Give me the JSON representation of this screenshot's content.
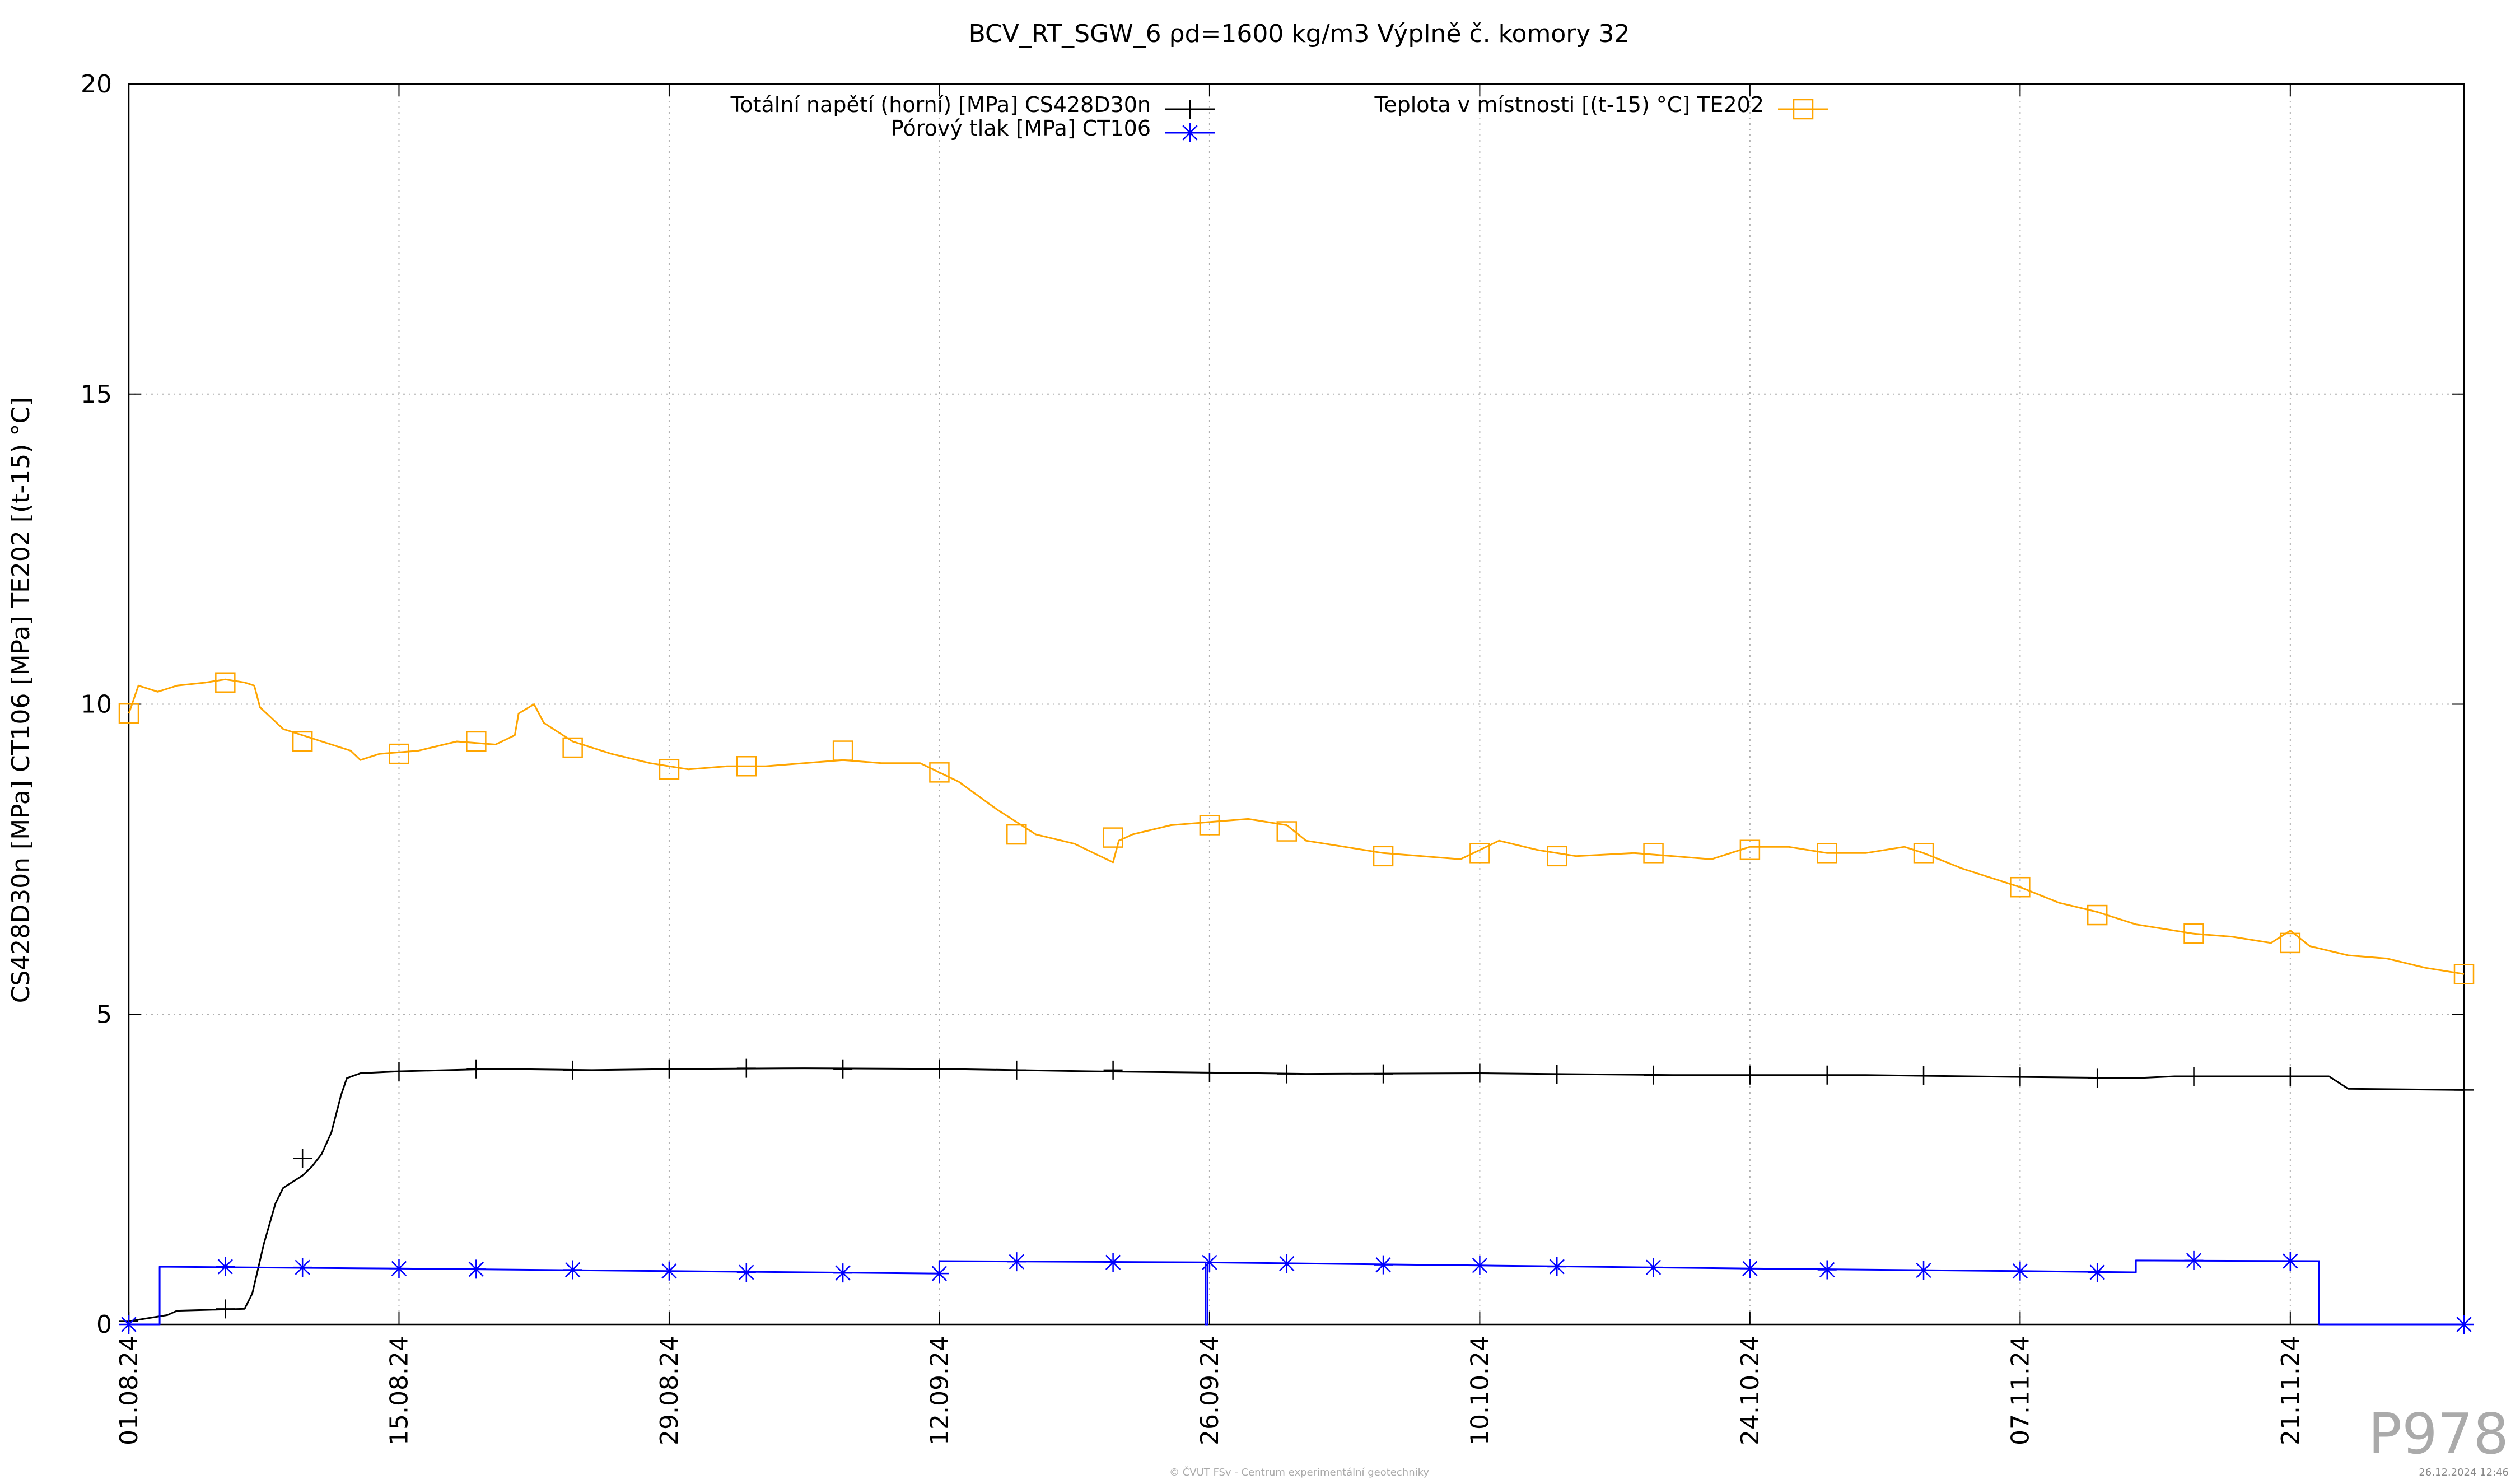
{
  "chart_data": {
    "type": "line",
    "title": "BCV_RT_SGW_6 ρd=1600 kg/m3 Výplně č. komory 32",
    "xlabel": "",
    "ylabel": "CS428D30n [MPa] CT106 [MPa] TE202 [(t-15) °C]",
    "ylim": [
      0,
      20
    ],
    "yticks": [
      "0",
      "5",
      "10",
      "15",
      "20"
    ],
    "xlim": [
      "2024-08-01",
      "2024-11-30"
    ],
    "xticks": [
      {
        "date": "2024-08-01",
        "label": "01.08.24"
      },
      {
        "date": "2024-08-15",
        "label": "15.08.24"
      },
      {
        "date": "2024-08-29",
        "label": "29.08.24"
      },
      {
        "date": "2024-09-12",
        "label": "12.09.24"
      },
      {
        "date": "2024-09-26",
        "label": "26.09.24"
      },
      {
        "date": "2024-10-10",
        "label": "10.10.24"
      },
      {
        "date": "2024-10-24",
        "label": "24.10.24"
      },
      {
        "date": "2024-11-07",
        "label": "07.11.24"
      },
      {
        "date": "2024-11-21",
        "label": "21.11.24"
      }
    ],
    "grid": true,
    "legend": "top",
    "series": [
      {
        "name": "Totální napětí (horní) [MPa] CS428D30n",
        "color": "#000000",
        "marker": "plus",
        "points": [
          [
            "2024-08-01",
            0.05
          ],
          [
            "2024-08-02",
            0.1
          ],
          [
            "2024-08-03",
            0.15
          ],
          [
            "2024-08-03.5",
            0.22
          ],
          [
            "2024-08-07",
            0.25
          ],
          [
            "2024-08-07.4",
            0.5
          ],
          [
            "2024-08-08",
            1.3
          ],
          [
            "2024-08-08.6",
            1.95
          ],
          [
            "2024-08-09",
            2.2
          ],
          [
            "2024-08-10",
            2.4
          ],
          [
            "2024-08-10.5",
            2.55
          ],
          [
            "2024-08-11",
            2.75
          ],
          [
            "2024-08-11.5",
            3.1
          ],
          [
            "2024-08-12",
            3.7
          ],
          [
            "2024-08-12.3",
            3.97
          ],
          [
            "2024-08-13",
            4.05
          ],
          [
            "2024-08-15",
            4.08
          ],
          [
            "2024-08-20",
            4.12
          ],
          [
            "2024-08-25",
            4.1
          ],
          [
            "2024-08-30",
            4.12
          ],
          [
            "2024-09-05",
            4.13
          ],
          [
            "2024-09-12",
            4.12
          ],
          [
            "2024-09-20",
            4.08
          ],
          [
            "2024-09-26",
            4.06
          ],
          [
            "2024-10-01",
            4.04
          ],
          [
            "2024-10-10",
            4.05
          ],
          [
            "2024-10-20",
            4.02
          ],
          [
            "2024-10-30",
            4.02
          ],
          [
            "2024-11-07",
            3.99
          ],
          [
            "2024-11-13",
            3.97
          ],
          [
            "2024-11-15",
            4.0
          ],
          [
            "2024-11-23",
            4.0
          ],
          [
            "2024-11-24",
            3.8
          ],
          [
            "2024-11-30",
            3.78
          ]
        ],
        "marker_points": [
          [
            "2024-08-01",
            0.05
          ],
          [
            "2024-08-06",
            0.25
          ],
          [
            "2024-08-10",
            2.68
          ],
          [
            "2024-08-15",
            4.08
          ],
          [
            "2024-08-19",
            4.12
          ],
          [
            "2024-08-24",
            4.1
          ],
          [
            "2024-08-29",
            4.12
          ],
          [
            "2024-09-02",
            4.13
          ],
          [
            "2024-09-07",
            4.12
          ],
          [
            "2024-09-12",
            4.12
          ],
          [
            "2024-09-16",
            4.1
          ],
          [
            "2024-09-21",
            4.1
          ],
          [
            "2024-09-26",
            4.06
          ],
          [
            "2024-09-30",
            4.04
          ],
          [
            "2024-10-05",
            4.04
          ],
          [
            "2024-10-10",
            4.05
          ],
          [
            "2024-10-14",
            4.03
          ],
          [
            "2024-10-19",
            4.02
          ],
          [
            "2024-10-24",
            4.02
          ],
          [
            "2024-10-28",
            4.02
          ],
          [
            "2024-11-02",
            4.01
          ],
          [
            "2024-11-07",
            3.99
          ],
          [
            "2024-11-11",
            3.97
          ],
          [
            "2024-11-16",
            4.0
          ],
          [
            "2024-11-21",
            4.0
          ],
          [
            "2024-11-30",
            3.78
          ]
        ]
      },
      {
        "name": "Pórový tlak [MPa] CT106",
        "color": "#0000ff",
        "marker": "star",
        "step": true,
        "points": [
          [
            "2024-08-01",
            0.0
          ],
          [
            "2024-08-02.6",
            0.0
          ],
          [
            "2024-08-02.6",
            0.93
          ],
          [
            "2024-08-15",
            0.9
          ],
          [
            "2024-08-29",
            0.86
          ],
          [
            "2024-09-12",
            0.82
          ],
          [
            "2024-09-12",
            1.02
          ],
          [
            "2024-09-25.8",
            1.0
          ],
          [
            "2024-09-25.8",
            0.0
          ],
          [
            "2024-09-25.9",
            0.0
          ],
          [
            "2024-09-25.9",
            1.0
          ],
          [
            "2024-10-10",
            0.95
          ],
          [
            "2024-10-24",
            0.9
          ],
          [
            "2024-11-07",
            0.86
          ],
          [
            "2024-11-13",
            0.84
          ],
          [
            "2024-11-13",
            1.03
          ],
          [
            "2024-11-22.5",
            1.02
          ],
          [
            "2024-11-22.5",
            0.0
          ],
          [
            "2024-11-30",
            0.0
          ]
        ],
        "marker_points": [
          [
            "2024-08-01",
            0.0
          ],
          [
            "2024-08-06",
            0.93
          ],
          [
            "2024-08-10",
            0.92
          ],
          [
            "2024-08-15",
            0.9
          ],
          [
            "2024-08-19",
            0.89
          ],
          [
            "2024-08-24",
            0.88
          ],
          [
            "2024-08-29",
            0.86
          ],
          [
            "2024-09-02",
            0.84
          ],
          [
            "2024-09-07",
            0.83
          ],
          [
            "2024-09-12",
            0.82
          ],
          [
            "2024-09-16",
            1.01
          ],
          [
            "2024-09-21",
            1.0
          ],
          [
            "2024-09-26",
            1.0
          ],
          [
            "2024-09-30",
            0.98
          ],
          [
            "2024-10-05",
            0.96
          ],
          [
            "2024-10-10",
            0.95
          ],
          [
            "2024-10-14",
            0.93
          ],
          [
            "2024-10-19",
            0.92
          ],
          [
            "2024-10-24",
            0.9
          ],
          [
            "2024-10-28",
            0.88
          ],
          [
            "2024-11-02",
            0.87
          ],
          [
            "2024-11-07",
            0.86
          ],
          [
            "2024-11-11",
            0.84
          ],
          [
            "2024-11-16",
            1.03
          ],
          [
            "2024-11-21",
            1.02
          ],
          [
            "2024-11-30",
            0.0
          ]
        ]
      },
      {
        "name": "Teplota v místnosti [(t-15) °C] TE202",
        "color": "#ffa500",
        "marker": "square",
        "points": [
          [
            "2024-08-01",
            9.85
          ],
          [
            "2024-08-01.5",
            10.3
          ],
          [
            "2024-08-02.5",
            10.2
          ],
          [
            "2024-08-03.5",
            10.3
          ],
          [
            "2024-08-05",
            10.35
          ],
          [
            "2024-08-06",
            10.4
          ],
          [
            "2024-08-07",
            10.35
          ],
          [
            "2024-08-07.5",
            10.3
          ],
          [
            "2024-08-07.8",
            9.95
          ],
          [
            "2024-08-09",
            9.6
          ],
          [
            "2024-08-11",
            9.4
          ],
          [
            "2024-08-12.5",
            9.25
          ],
          [
            "2024-08-13",
            9.1
          ],
          [
            "2024-08-14",
            9.2
          ],
          [
            "2024-08-16",
            9.25
          ],
          [
            "2024-08-18",
            9.4
          ],
          [
            "2024-08-20",
            9.35
          ],
          [
            "2024-08-21",
            9.5
          ],
          [
            "2024-08-21.2",
            9.85
          ],
          [
            "2024-08-22",
            10.0
          ],
          [
            "2024-08-22.5",
            9.7
          ],
          [
            "2024-08-24",
            9.4
          ],
          [
            "2024-08-26",
            9.2
          ],
          [
            "2024-08-28",
            9.05
          ],
          [
            "2024-08-30",
            8.95
          ],
          [
            "2024-09-01",
            9.0
          ],
          [
            "2024-09-03",
            9.0
          ],
          [
            "2024-09-05",
            9.05
          ],
          [
            "2024-09-07",
            9.1
          ],
          [
            "2024-09-09",
            9.05
          ],
          [
            "2024-09-11",
            9.05
          ],
          [
            "2024-09-12",
            8.9
          ],
          [
            "2024-09-13",
            8.75
          ],
          [
            "2024-09-15",
            8.3
          ],
          [
            "2024-09-17",
            7.9
          ],
          [
            "2024-09-19",
            7.75
          ],
          [
            "2024-09-20",
            7.6
          ],
          [
            "2024-09-21",
            7.45
          ],
          [
            "2024-09-21.3",
            7.8
          ],
          [
            "2024-09-22",
            7.9
          ],
          [
            "2024-09-24",
            8.05
          ],
          [
            "2024-09-26",
            8.1
          ],
          [
            "2024-09-28",
            8.15
          ],
          [
            "2024-09-30",
            8.05
          ],
          [
            "2024-10-01",
            7.8
          ],
          [
            "2024-10-03",
            7.7
          ],
          [
            "2024-10-05",
            7.6
          ],
          [
            "2024-10-07",
            7.55
          ],
          [
            "2024-10-09",
            7.5
          ],
          [
            "2024-10-10",
            7.65
          ],
          [
            "2024-10-11",
            7.8
          ],
          [
            "2024-10-13",
            7.65
          ],
          [
            "2024-10-15",
            7.55
          ],
          [
            "2024-10-18",
            7.6
          ],
          [
            "2024-10-20",
            7.55
          ],
          [
            "2024-10-22",
            7.5
          ],
          [
            "2024-10-24",
            7.7
          ],
          [
            "2024-10-26",
            7.7
          ],
          [
            "2024-10-28",
            7.6
          ],
          [
            "2024-10-30",
            7.6
          ],
          [
            "2024-11-01",
            7.7
          ],
          [
            "2024-11-02",
            7.6
          ],
          [
            "2024-11-04",
            7.35
          ],
          [
            "2024-11-07",
            7.05
          ],
          [
            "2024-11-09",
            6.8
          ],
          [
            "2024-11-11",
            6.65
          ],
          [
            "2024-11-13",
            6.45
          ],
          [
            "2024-11-16",
            6.3
          ],
          [
            "2024-11-18",
            6.25
          ],
          [
            "2024-11-20",
            6.15
          ],
          [
            "2024-11-21",
            6.35
          ],
          [
            "2024-11-22",
            6.1
          ],
          [
            "2024-11-24",
            5.95
          ],
          [
            "2024-11-26",
            5.9
          ],
          [
            "2024-11-28",
            5.75
          ],
          [
            "2024-11-30",
            5.65
          ]
        ],
        "marker_points": [
          [
            "2024-08-01",
            9.85
          ],
          [
            "2024-08-06",
            10.35
          ],
          [
            "2024-08-10",
            9.4
          ],
          [
            "2024-08-15",
            9.2
          ],
          [
            "2024-08-19",
            9.4
          ],
          [
            "2024-08-24",
            9.3
          ],
          [
            "2024-08-29",
            8.95
          ],
          [
            "2024-09-02",
            9.0
          ],
          [
            "2024-09-07",
            9.25
          ],
          [
            "2024-09-12",
            8.9
          ],
          [
            "2024-09-16",
            7.9
          ],
          [
            "2024-09-21",
            7.85
          ],
          [
            "2024-09-26",
            8.05
          ],
          [
            "2024-09-30",
            7.95
          ],
          [
            "2024-10-05",
            7.55
          ],
          [
            "2024-10-10",
            7.6
          ],
          [
            "2024-10-14",
            7.55
          ],
          [
            "2024-10-19",
            7.6
          ],
          [
            "2024-10-24",
            7.65
          ],
          [
            "2024-10-28",
            7.6
          ],
          [
            "2024-11-02",
            7.6
          ],
          [
            "2024-11-07",
            7.05
          ],
          [
            "2024-11-11",
            6.6
          ],
          [
            "2024-11-16",
            6.3
          ],
          [
            "2024-11-21",
            6.15
          ],
          [
            "2024-11-30",
            5.65
          ]
        ]
      }
    ]
  },
  "corner_label": "P978",
  "footer_credit": "© ČVUT FSv - Centrum experimentální geotechniky",
  "footer_timestamp": "26.12.2024 12:46"
}
